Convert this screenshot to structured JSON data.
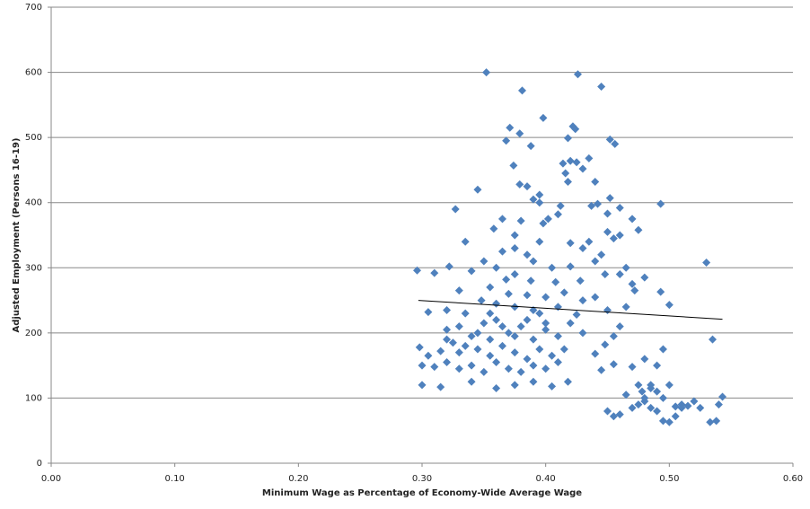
{
  "chart_data": {
    "type": "scatter",
    "x_label": "Minimum Wage as Percentage of Economy-Wide  Average Wage",
    "y_label": "Adjusted Employment (Persons 16-19)",
    "xlim": [
      0,
      0.6
    ],
    "ylim": [
      0,
      700
    ],
    "xticks": [
      {
        "value": 0,
        "label": "0.00"
      },
      {
        "value": 0.1,
        "label": "0.10"
      },
      {
        "value": 0.2,
        "label": "0.20"
      },
      {
        "value": 0.3,
        "label": "0.30"
      },
      {
        "value": 0.4,
        "label": "0.40"
      },
      {
        "value": 0.5,
        "label": "0.50"
      },
      {
        "value": 0.6,
        "label": "0.60"
      }
    ],
    "yticks": [
      0,
      100,
      200,
      300,
      400,
      500,
      600,
      700
    ],
    "grid": true,
    "series": [
      {
        "color": "#4f81bd",
        "x": [
          0.352,
          0.426,
          0.445,
          0.381,
          0.398,
          0.422,
          0.424,
          0.371,
          0.379,
          0.452,
          0.456,
          0.368,
          0.388,
          0.418,
          0.435,
          0.414,
          0.42,
          0.425,
          0.374,
          0.416,
          0.43,
          0.44,
          0.418,
          0.379,
          0.395,
          0.385,
          0.345,
          0.39,
          0.493,
          0.412,
          0.452,
          0.327,
          0.358,
          0.38,
          0.398,
          0.41,
          0.45,
          0.47,
          0.475,
          0.46,
          0.53,
          0.296,
          0.31,
          0.322,
          0.34,
          0.36,
          0.375,
          0.39,
          0.405,
          0.42,
          0.44,
          0.46,
          0.47,
          0.48,
          0.33,
          0.355,
          0.37,
          0.385,
          0.4,
          0.415,
          0.43,
          0.44,
          0.493,
          0.5,
          0.32,
          0.335,
          0.36,
          0.375,
          0.39,
          0.41,
          0.425,
          0.45,
          0.465,
          0.305,
          0.32,
          0.33,
          0.34,
          0.35,
          0.36,
          0.37,
          0.38,
          0.39,
          0.4,
          0.41,
          0.42,
          0.43,
          0.455,
          0.46,
          0.535,
          0.298,
          0.305,
          0.315,
          0.325,
          0.335,
          0.345,
          0.355,
          0.365,
          0.375,
          0.385,
          0.395,
          0.405,
          0.415,
          0.44,
          0.448,
          0.3,
          0.31,
          0.32,
          0.33,
          0.34,
          0.35,
          0.36,
          0.37,
          0.38,
          0.39,
          0.4,
          0.41,
          0.445,
          0.455,
          0.47,
          0.48,
          0.49,
          0.495,
          0.3,
          0.315,
          0.34,
          0.36,
          0.375,
          0.39,
          0.405,
          0.418,
          0.465,
          0.475,
          0.485,
          0.49,
          0.495,
          0.5,
          0.51,
          0.52,
          0.525,
          0.54,
          0.543,
          0.45,
          0.455,
          0.46,
          0.47,
          0.475,
          0.48,
          0.485,
          0.49,
          0.495,
          0.5,
          0.505,
          0.51,
          0.515,
          0.533,
          0.538,
          0.45,
          0.455,
          0.445,
          0.43,
          0.435,
          0.395,
          0.375,
          0.385,
          0.365,
          0.35,
          0.465,
          0.448,
          0.428,
          0.408,
          0.388,
          0.368,
          0.348,
          0.335,
          0.355,
          0.365,
          0.375,
          0.345,
          0.355,
          0.33,
          0.32,
          0.385,
          0.395,
          0.4,
          0.375,
          0.365,
          0.395,
          0.402,
          0.42,
          0.442,
          0.437,
          0.46,
          0.472,
          0.48,
          0.505,
          0.485,
          0.478
        ],
        "y": [
          600,
          597,
          578,
          572,
          530,
          517,
          513,
          515,
          506,
          497,
          490,
          495,
          487,
          499,
          468,
          460,
          464,
          462,
          457,
          445,
          452,
          432,
          432,
          428,
          412,
          425,
          420,
          405,
          398,
          395,
          407,
          390,
          360,
          372,
          368,
          382,
          383,
          375,
          358,
          350,
          308,
          296,
          292,
          302,
          295,
          300,
          290,
          310,
          300,
          302,
          310,
          290,
          275,
          285,
          265,
          270,
          260,
          258,
          255,
          262,
          250,
          255,
          263,
          243,
          235,
          230,
          245,
          240,
          235,
          240,
          228,
          235,
          240,
          232,
          205,
          210,
          195,
          215,
          220,
          200,
          210,
          190,
          205,
          195,
          215,
          200,
          195,
          210,
          190,
          178,
          165,
          172,
          185,
          180,
          175,
          165,
          180,
          170,
          160,
          175,
          165,
          175,
          168,
          182,
          150,
          148,
          155,
          145,
          150,
          140,
          155,
          145,
          140,
          150,
          145,
          155,
          143,
          152,
          148,
          160,
          150,
          175,
          120,
          117,
          125,
          115,
          120,
          125,
          118,
          125,
          105,
          120,
          115,
          110,
          100,
          120,
          90,
          95,
          85,
          90,
          102,
          80,
          72,
          75,
          85,
          90,
          95,
          85,
          80,
          65,
          63,
          72,
          85,
          88,
          63,
          65,
          355,
          345,
          320,
          330,
          340,
          340,
          330,
          320,
          325,
          310,
          300,
          290,
          280,
          278,
          280,
          282,
          250,
          340,
          230,
          210,
          195,
          200,
          190,
          170,
          190,
          220,
          230,
          215,
          350,
          375,
          400,
          375,
          338,
          398,
          395,
          392,
          265,
          100,
          87,
          120,
          110
        ]
      }
    ],
    "trendline": {
      "color": "#000000",
      "x": [
        0.297,
        0.543
      ],
      "y": [
        250,
        221
      ]
    }
  }
}
